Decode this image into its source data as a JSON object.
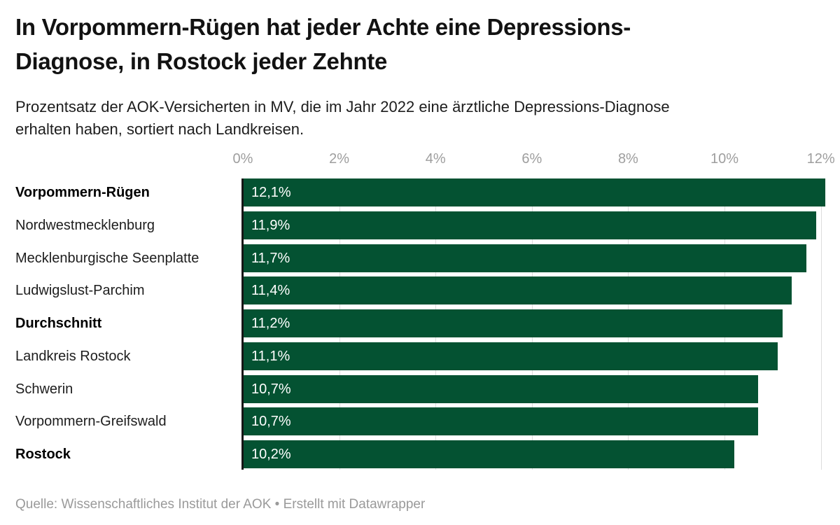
{
  "header": {
    "title_lines": [
      "In Vorpommern-Rügen hat jeder Achte eine Depressions-",
      "Diagnose, in Rostock jeder Zehnte"
    ],
    "subtitle_lines": [
      "Prozentsatz der AOK-Versicherten in MV, die im Jahr 2022 eine ärztliche Depressions-Diagnose",
      "erhalten haben, sortiert nach Landkreisen."
    ]
  },
  "chart_data": {
    "type": "bar",
    "orientation": "horizontal",
    "title": "In Vorpommern-Rügen hat jeder Achte eine Depressions-Diagnose, in Rostock jeder Zehnte",
    "subtitle": "Prozentsatz der AOK-Versicherten in MV, die im Jahr 2022 eine ärztliche Depressions-Diagnose erhalten haben, sortiert nach Landkreisen.",
    "categories": [
      "Vorpommern-Rügen",
      "Nordwestmecklenburg",
      "Mecklenburgische Seenplatte",
      "Ludwigslust-Parchim",
      "Durchschnitt",
      "Landkreis Rostock",
      "Schwerin",
      "Vorpommern-Greifswald",
      "Rostock"
    ],
    "values": [
      12.1,
      11.9,
      11.7,
      11.4,
      11.2,
      11.1,
      10.7,
      10.7,
      10.2
    ],
    "value_labels": [
      "12,1%",
      "11,9%",
      "11,7%",
      "11,4%",
      "11,2%",
      "11,1%",
      "10,7%",
      "10,7%",
      "10,2%"
    ],
    "emphasized": [
      true,
      false,
      false,
      false,
      true,
      false,
      false,
      false,
      true
    ],
    "x_ticks": [
      "0%",
      "2%",
      "4%",
      "6%",
      "8%",
      "10%",
      "12%"
    ],
    "x_tick_values": [
      0,
      2,
      4,
      6,
      8,
      10,
      12
    ],
    "xlim": [
      0,
      12.1
    ],
    "unit": "%",
    "grid": true,
    "value_labels_inside_bar": true,
    "colors": {
      "bar": "#045232",
      "bar_value_text": "#ffffff",
      "axis_line": "#161616",
      "gridline": "#dddddd",
      "tick_text": "#9e9e9e"
    }
  },
  "footer": {
    "source_line": "Quelle: Wissenschaftliches Institut der AOK • Erstellt mit Datawrapper"
  }
}
